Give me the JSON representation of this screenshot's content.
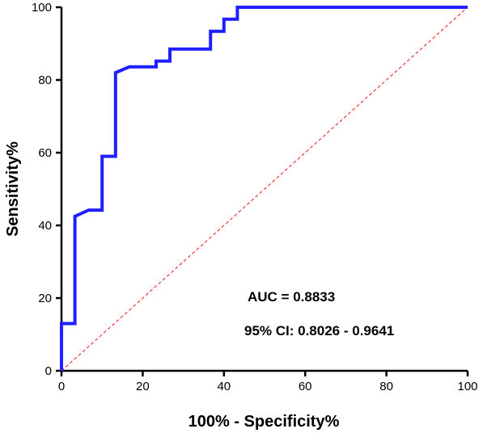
{
  "chart_data": {
    "type": "line",
    "title": "",
    "xlabel": "100% - Specificity%",
    "ylabel": "Sensitivity%",
    "xlim": [
      0,
      100
    ],
    "ylim": [
      0,
      100
    ],
    "xticks": [
      0,
      20,
      40,
      60,
      80,
      100
    ],
    "yticks": [
      0,
      20,
      40,
      60,
      80,
      100
    ],
    "grid": false,
    "series": [
      {
        "style": "step",
        "color": "#1f1fff",
        "x": [
          0,
          0,
          3.3,
          3.3,
          6.7,
          10,
          10,
          13.3,
          13.3,
          16.7,
          23.3,
          23.3,
          26.7,
          26.7,
          36.7,
          36.7,
          40,
          40,
          43.3,
          43.3,
          100
        ],
        "y": [
          0,
          13,
          13,
          42.5,
          44.2,
          44.2,
          59,
          59,
          82,
          83.6,
          83.6,
          85.2,
          85.2,
          88.5,
          88.5,
          93.4,
          93.4,
          96.7,
          96.7,
          100,
          100
        ]
      },
      {
        "style": "dashed-reference",
        "color": "#ff3333",
        "x": [
          0,
          100
        ],
        "y": [
          0,
          100
        ]
      }
    ],
    "annotations": [
      "AUC  = 0.8833",
      "95% CI: 0.8026 - 0.9641"
    ]
  }
}
